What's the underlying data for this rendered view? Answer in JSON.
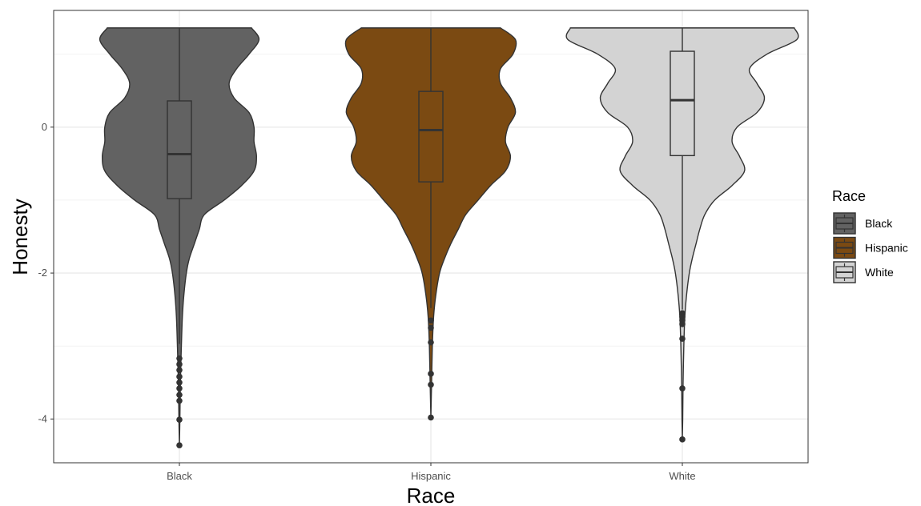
{
  "chart_data": {
    "type": "violin",
    "title": "",
    "xlabel": "Race",
    "ylabel": "Honesty",
    "ylim": [
      -4.6,
      1.6
    ],
    "y_ticks": [
      0,
      -2,
      -4
    ],
    "y_minor_ticks": [
      1,
      -1,
      -3
    ],
    "grid": true,
    "legend": {
      "title": "Race",
      "position": "right"
    },
    "categories": [
      "Black",
      "Hispanic",
      "White"
    ],
    "series": [
      {
        "name": "Black",
        "color": "#626262",
        "box": {
          "q1": -0.98,
          "median": -0.37,
          "q3": 0.36,
          "whisker_low": -2.97,
          "whisker_high": 1.36
        },
        "outliers": [
          -3.17,
          -3.25,
          -3.33,
          -3.42,
          -3.5,
          -3.58,
          -3.67,
          -3.75,
          -4.01,
          -4.36
        ],
        "density": [
          [
            1.36,
            0.29
          ],
          [
            1.2,
            0.32
          ],
          [
            1.0,
            0.28
          ],
          [
            0.8,
            0.23
          ],
          [
            0.6,
            0.2
          ],
          [
            0.4,
            0.22
          ],
          [
            0.2,
            0.28
          ],
          [
            0.0,
            0.3
          ],
          [
            -0.2,
            0.3
          ],
          [
            -0.4,
            0.31
          ],
          [
            -0.6,
            0.3
          ],
          [
            -0.8,
            0.25
          ],
          [
            -1.0,
            0.18
          ],
          [
            -1.2,
            0.1
          ],
          [
            -1.4,
            0.08
          ],
          [
            -1.6,
            0.06
          ],
          [
            -1.8,
            0.04
          ],
          [
            -2.0,
            0.028
          ],
          [
            -2.3,
            0.018
          ],
          [
            -2.6,
            0.012
          ],
          [
            -3.0,
            0.008
          ],
          [
            -3.5,
            0.004
          ],
          [
            -4.0,
            0.002
          ],
          [
            -4.36,
            0.0
          ]
        ]
      },
      {
        "name": "Hispanic",
        "color": "#7b4a12",
        "box": {
          "q1": -0.75,
          "median": -0.04,
          "q3": 0.49,
          "whisker_low": -2.48,
          "whisker_high": 1.36
        },
        "outliers": [
          -2.65,
          -2.75,
          -2.95,
          -3.38,
          -3.53,
          -3.98
        ],
        "density": [
          [
            1.36,
            0.28
          ],
          [
            1.2,
            0.34
          ],
          [
            1.0,
            0.33
          ],
          [
            0.8,
            0.28
          ],
          [
            0.6,
            0.28
          ],
          [
            0.4,
            0.32
          ],
          [
            0.2,
            0.34
          ],
          [
            0.0,
            0.31
          ],
          [
            -0.2,
            0.3
          ],
          [
            -0.4,
            0.32
          ],
          [
            -0.6,
            0.3
          ],
          [
            -0.8,
            0.24
          ],
          [
            -1.0,
            0.19
          ],
          [
            -1.2,
            0.14
          ],
          [
            -1.4,
            0.11
          ],
          [
            -1.6,
            0.08
          ],
          [
            -1.8,
            0.055
          ],
          [
            -2.0,
            0.035
          ],
          [
            -2.3,
            0.02
          ],
          [
            -2.6,
            0.011
          ],
          [
            -3.0,
            0.006
          ],
          [
            -3.5,
            0.003
          ],
          [
            -3.98,
            0.0
          ]
        ]
      },
      {
        "name": "White",
        "color": "#d3d3d3",
        "box": {
          "q1": -0.39,
          "median": 0.37,
          "q3": 1.04,
          "whisker_low": -2.5,
          "whisker_high": 1.36
        },
        "outliers": [
          -2.55,
          -2.6,
          -2.65,
          -2.7,
          -2.9,
          -3.58,
          -4.28
        ],
        "density": [
          [
            1.36,
            0.45
          ],
          [
            1.2,
            0.46
          ],
          [
            1.0,
            0.34
          ],
          [
            0.8,
            0.27
          ],
          [
            0.6,
            0.3
          ],
          [
            0.4,
            0.33
          ],
          [
            0.2,
            0.3
          ],
          [
            0.0,
            0.22
          ],
          [
            -0.2,
            0.2
          ],
          [
            -0.4,
            0.23
          ],
          [
            -0.6,
            0.25
          ],
          [
            -0.8,
            0.2
          ],
          [
            -1.0,
            0.13
          ],
          [
            -1.2,
            0.09
          ],
          [
            -1.4,
            0.07
          ],
          [
            -1.6,
            0.055
          ],
          [
            -1.8,
            0.04
          ],
          [
            -2.0,
            0.028
          ],
          [
            -2.3,
            0.017
          ],
          [
            -2.6,
            0.01
          ],
          [
            -3.0,
            0.006
          ],
          [
            -3.5,
            0.003
          ],
          [
            -4.0,
            0.0015
          ],
          [
            -4.28,
            0.0
          ]
        ]
      }
    ]
  }
}
